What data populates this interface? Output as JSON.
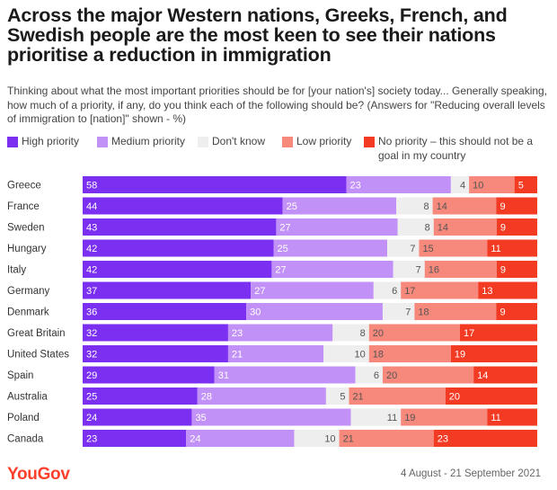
{
  "title": "Across the major Western nations, Greeks, French, and Swedish people are the most keen to see their nations prioritise a reduction in immigration",
  "subtitle": "Thinking about what the most important priorities should be for [your nation's] society today... Generally speaking, how much of a priority, if any, do you think each of the following should be? (Answers for \"Reducing overall levels of immigration to [nation]\" shown - %)",
  "logo": "YouGov",
  "date_range": "4 August - 21 September 2021",
  "colors": {
    "high": "#7b2ff0",
    "medium": "#c291f8",
    "dont_know": "#eeeeee",
    "low": "#f6897b",
    "none": "#f33a23",
    "brand": "#ff412c"
  },
  "chart_data": {
    "type": "bar",
    "orientation": "horizontal",
    "stacked": true,
    "xlim": [
      0,
      100
    ],
    "categories": [
      "Greece",
      "France",
      "Sweden",
      "Hungary",
      "Italy",
      "Germany",
      "Denmark",
      "Great Britain",
      "United States",
      "Spain",
      "Australia",
      "Poland",
      "Canada"
    ],
    "series": [
      {
        "name": "High priority",
        "color": "#7b2ff0",
        "values": [
          58,
          44,
          43,
          42,
          42,
          37,
          36,
          32,
          32,
          29,
          25,
          24,
          23
        ]
      },
      {
        "name": "Medium priority",
        "color": "#c291f8",
        "values": [
          23,
          25,
          27,
          25,
          27,
          27,
          30,
          23,
          21,
          31,
          28,
          35,
          24
        ]
      },
      {
        "name": "Don't know",
        "color": "#eeeeee",
        "values": [
          4,
          8,
          8,
          7,
          7,
          6,
          7,
          8,
          10,
          6,
          5,
          11,
          10
        ]
      },
      {
        "name": "Low priority",
        "color": "#f6897b",
        "values": [
          10,
          14,
          14,
          15,
          16,
          17,
          18,
          20,
          18,
          20,
          21,
          19,
          21
        ]
      },
      {
        "name": "No priority – this should not be a goal in my country",
        "color": "#f33a23",
        "values": [
          5,
          9,
          9,
          11,
          9,
          13,
          9,
          17,
          19,
          14,
          20,
          11,
          23
        ]
      }
    ],
    "grid": false,
    "legend_position": "top"
  }
}
